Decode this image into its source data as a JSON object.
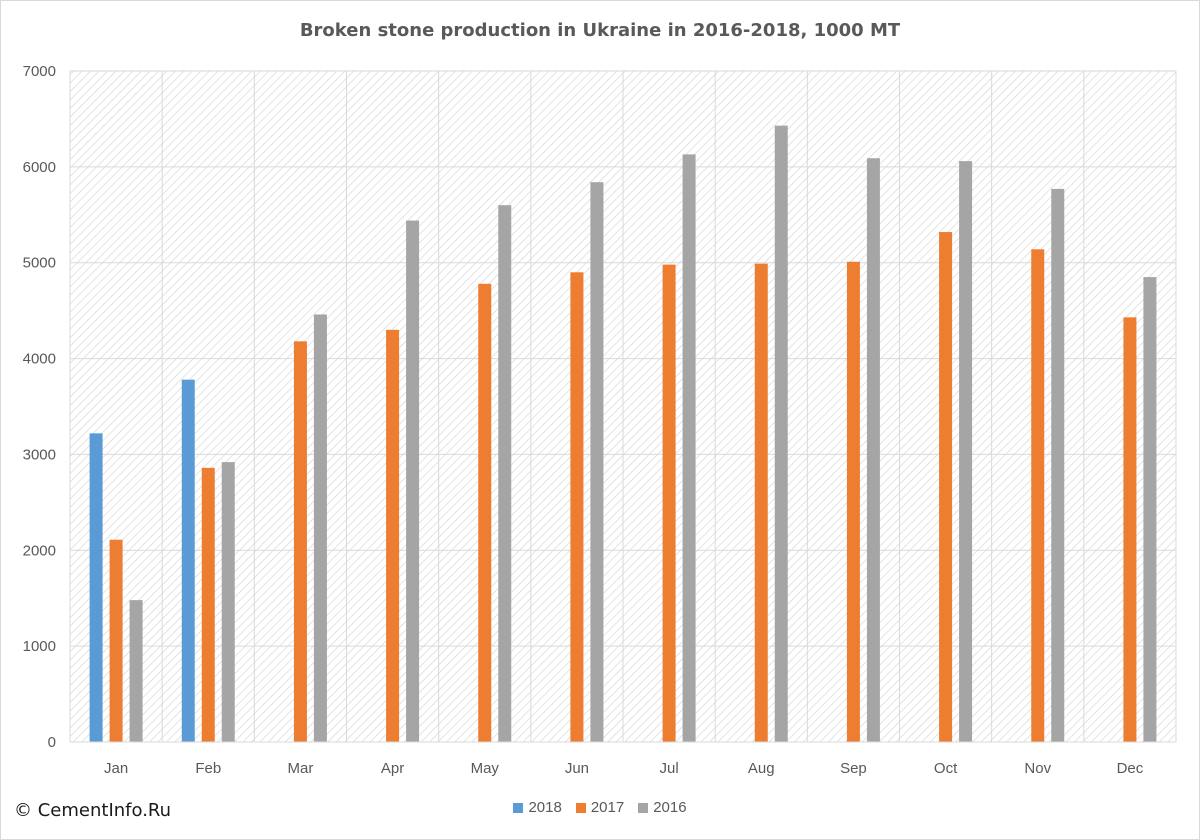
{
  "chart_data": {
    "type": "bar",
    "title": "Broken stone production in Ukraine in 2016-2018, 1000 MT",
    "xlabel": "",
    "ylabel": "",
    "ylim": [
      0,
      7000
    ],
    "yticks": [
      "0",
      "1000",
      "2000",
      "3000",
      "4000",
      "5000",
      "6000",
      "7000"
    ],
    "categories": [
      "Jan",
      "Feb",
      "Mar",
      "Apr",
      "May",
      "Jun",
      "Jul",
      "Aug",
      "Sep",
      "Oct",
      "Nov",
      "Dec"
    ],
    "series": [
      {
        "name": "2018",
        "color": "#5b9bd5",
        "values": [
          3220,
          3780,
          null,
          null,
          null,
          null,
          null,
          null,
          null,
          null,
          null,
          null
        ]
      },
      {
        "name": "2017",
        "color": "#ed7d31",
        "values": [
          2110,
          2860,
          4180,
          4300,
          4780,
          4900,
          4980,
          4990,
          5010,
          5320,
          5140,
          4430
        ]
      },
      {
        "name": "2016",
        "color": "#a5a5a5",
        "values": [
          1480,
          2920,
          4460,
          5440,
          5600,
          5840,
          6130,
          6430,
          6090,
          6060,
          5770,
          4850
        ]
      }
    ],
    "grid": true,
    "legend_position": "bottom"
  },
  "copyright": "© CementInfo.Ru"
}
